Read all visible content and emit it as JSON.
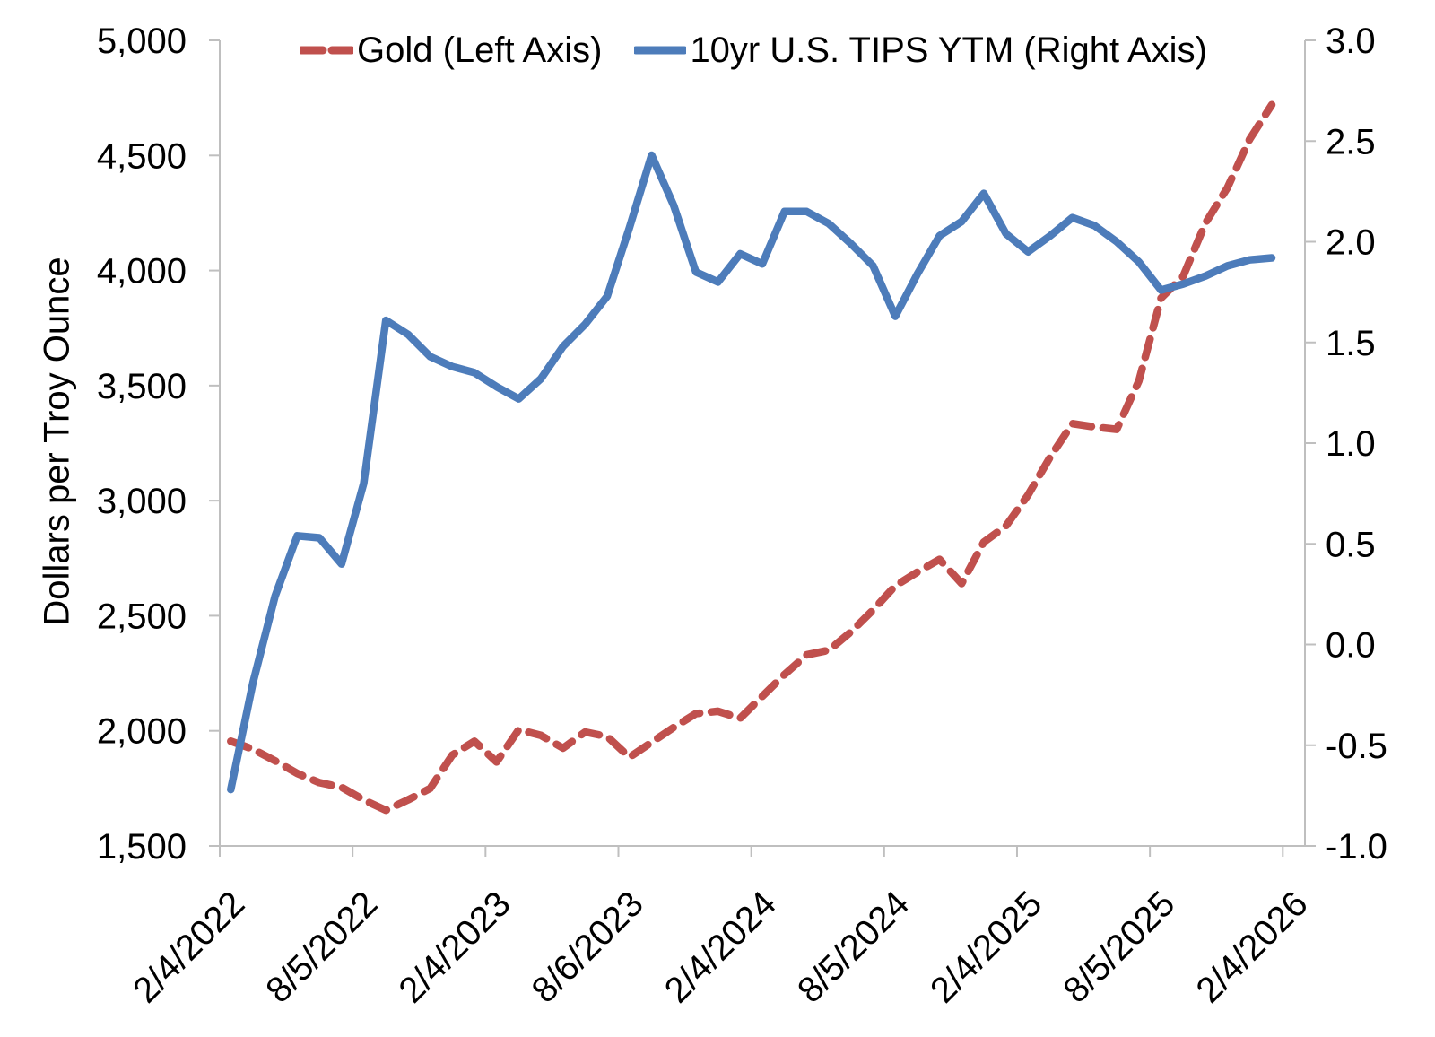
{
  "legend": {
    "items": [
      {
        "label": "Gold (Left Axis)",
        "color": "#C0504D",
        "line_style": "dashed"
      },
      {
        "label": "10yr U.S. TIPS YTM (Right Axis)",
        "color": "#4D7CBA",
        "line_style": "solid"
      }
    ]
  },
  "y_left_axis": {
    "title": "Dollars per Troy Ounce",
    "tick_labels": [
      "5,000",
      "4,500",
      "4,000",
      "3,500",
      "3,000",
      "2,500",
      "2,000",
      "1,500"
    ],
    "tick_values": [
      5000,
      4500,
      4000,
      3500,
      3000,
      2500,
      2000,
      1500
    ]
  },
  "y_right_axis": {
    "tick_labels": [
      "3.0",
      "2.5",
      "2.0",
      "1.5",
      "1.0",
      "0.5",
      "0.0",
      "-0.5",
      "-1.0"
    ],
    "tick_values": [
      3.0,
      2.5,
      2.0,
      1.5,
      1.0,
      0.5,
      0.0,
      -0.5,
      -1.0
    ]
  },
  "x_axis": {
    "tick_labels": [
      "2/4/2022",
      "8/5/2022",
      "2/4/2023",
      "8/6/2023",
      "2/4/2024",
      "8/5/2024",
      "2/4/2025",
      "8/5/2025",
      "2/4/2026"
    ],
    "tick_positions": [
      0,
      6,
      12,
      18,
      24,
      30,
      36,
      42,
      48
    ],
    "n_categories": 49
  },
  "colors": {
    "gold_line": "#C0504D",
    "tips_line": "#4D7CBA",
    "axis_line": "#BFBFBF",
    "text": "#000000",
    "background": "#FFFFFF"
  },
  "chart_data": {
    "type": "line",
    "title": "",
    "legend_position": "top",
    "grid": false,
    "x_tick_labels": [
      "2/4/2022",
      "8/5/2022",
      "2/4/2023",
      "8/6/2023",
      "2/4/2024",
      "8/5/2024",
      "2/4/2025",
      "8/5/2025",
      "2/4/2026"
    ],
    "x_tick_positions": [
      0,
      6,
      12,
      18,
      24,
      30,
      36,
      42,
      48
    ],
    "n_categories": 49,
    "n_points": 48,
    "y_left": {
      "label": "Dollars per Troy Ounce",
      "range": [
        1500,
        5000
      ],
      "tick_step": 500
    },
    "y_right": {
      "label": "10yr U.S. TIPS YTM",
      "range": [
        -1.0,
        3.0
      ],
      "tick_step": 0.5
    },
    "series": [
      {
        "name": "Gold (Left Axis)",
        "axis": "left",
        "color": "#C0504D",
        "style": "dashed",
        "values": [
          1955,
          1920,
          1870,
          1815,
          1775,
          1755,
          1700,
          1655,
          1700,
          1750,
          1895,
          1955,
          1865,
          2005,
          1980,
          1925,
          1995,
          1975,
          1885,
          1950,
          2015,
          2075,
          2085,
          2055,
          2150,
          2245,
          2330,
          2350,
          2430,
          2525,
          2630,
          2690,
          2745,
          2640,
          2820,
          2890,
          3025,
          3190,
          3335,
          3320,
          3310,
          3520,
          3880,
          3975,
          4205,
          4360,
          4570,
          4720
        ]
      },
      {
        "name": "10yr U.S. TIPS YTM (Right Axis)",
        "axis": "right",
        "color": "#4D7CBA",
        "style": "solid",
        "values": [
          -0.72,
          -0.19,
          0.24,
          0.54,
          0.53,
          0.4,
          0.8,
          1.61,
          1.54,
          1.43,
          1.38,
          1.35,
          1.28,
          1.22,
          1.32,
          1.48,
          1.59,
          1.73,
          2.07,
          2.43,
          2.18,
          1.85,
          1.8,
          1.94,
          1.89,
          2.15,
          2.15,
          2.09,
          1.99,
          1.88,
          1.63,
          1.84,
          2.03,
          2.1,
          2.24,
          2.04,
          1.95,
          2.03,
          2.12,
          2.08,
          2.0,
          1.9,
          1.76,
          1.79,
          1.83,
          1.88,
          1.91,
          1.92
        ]
      }
    ]
  }
}
